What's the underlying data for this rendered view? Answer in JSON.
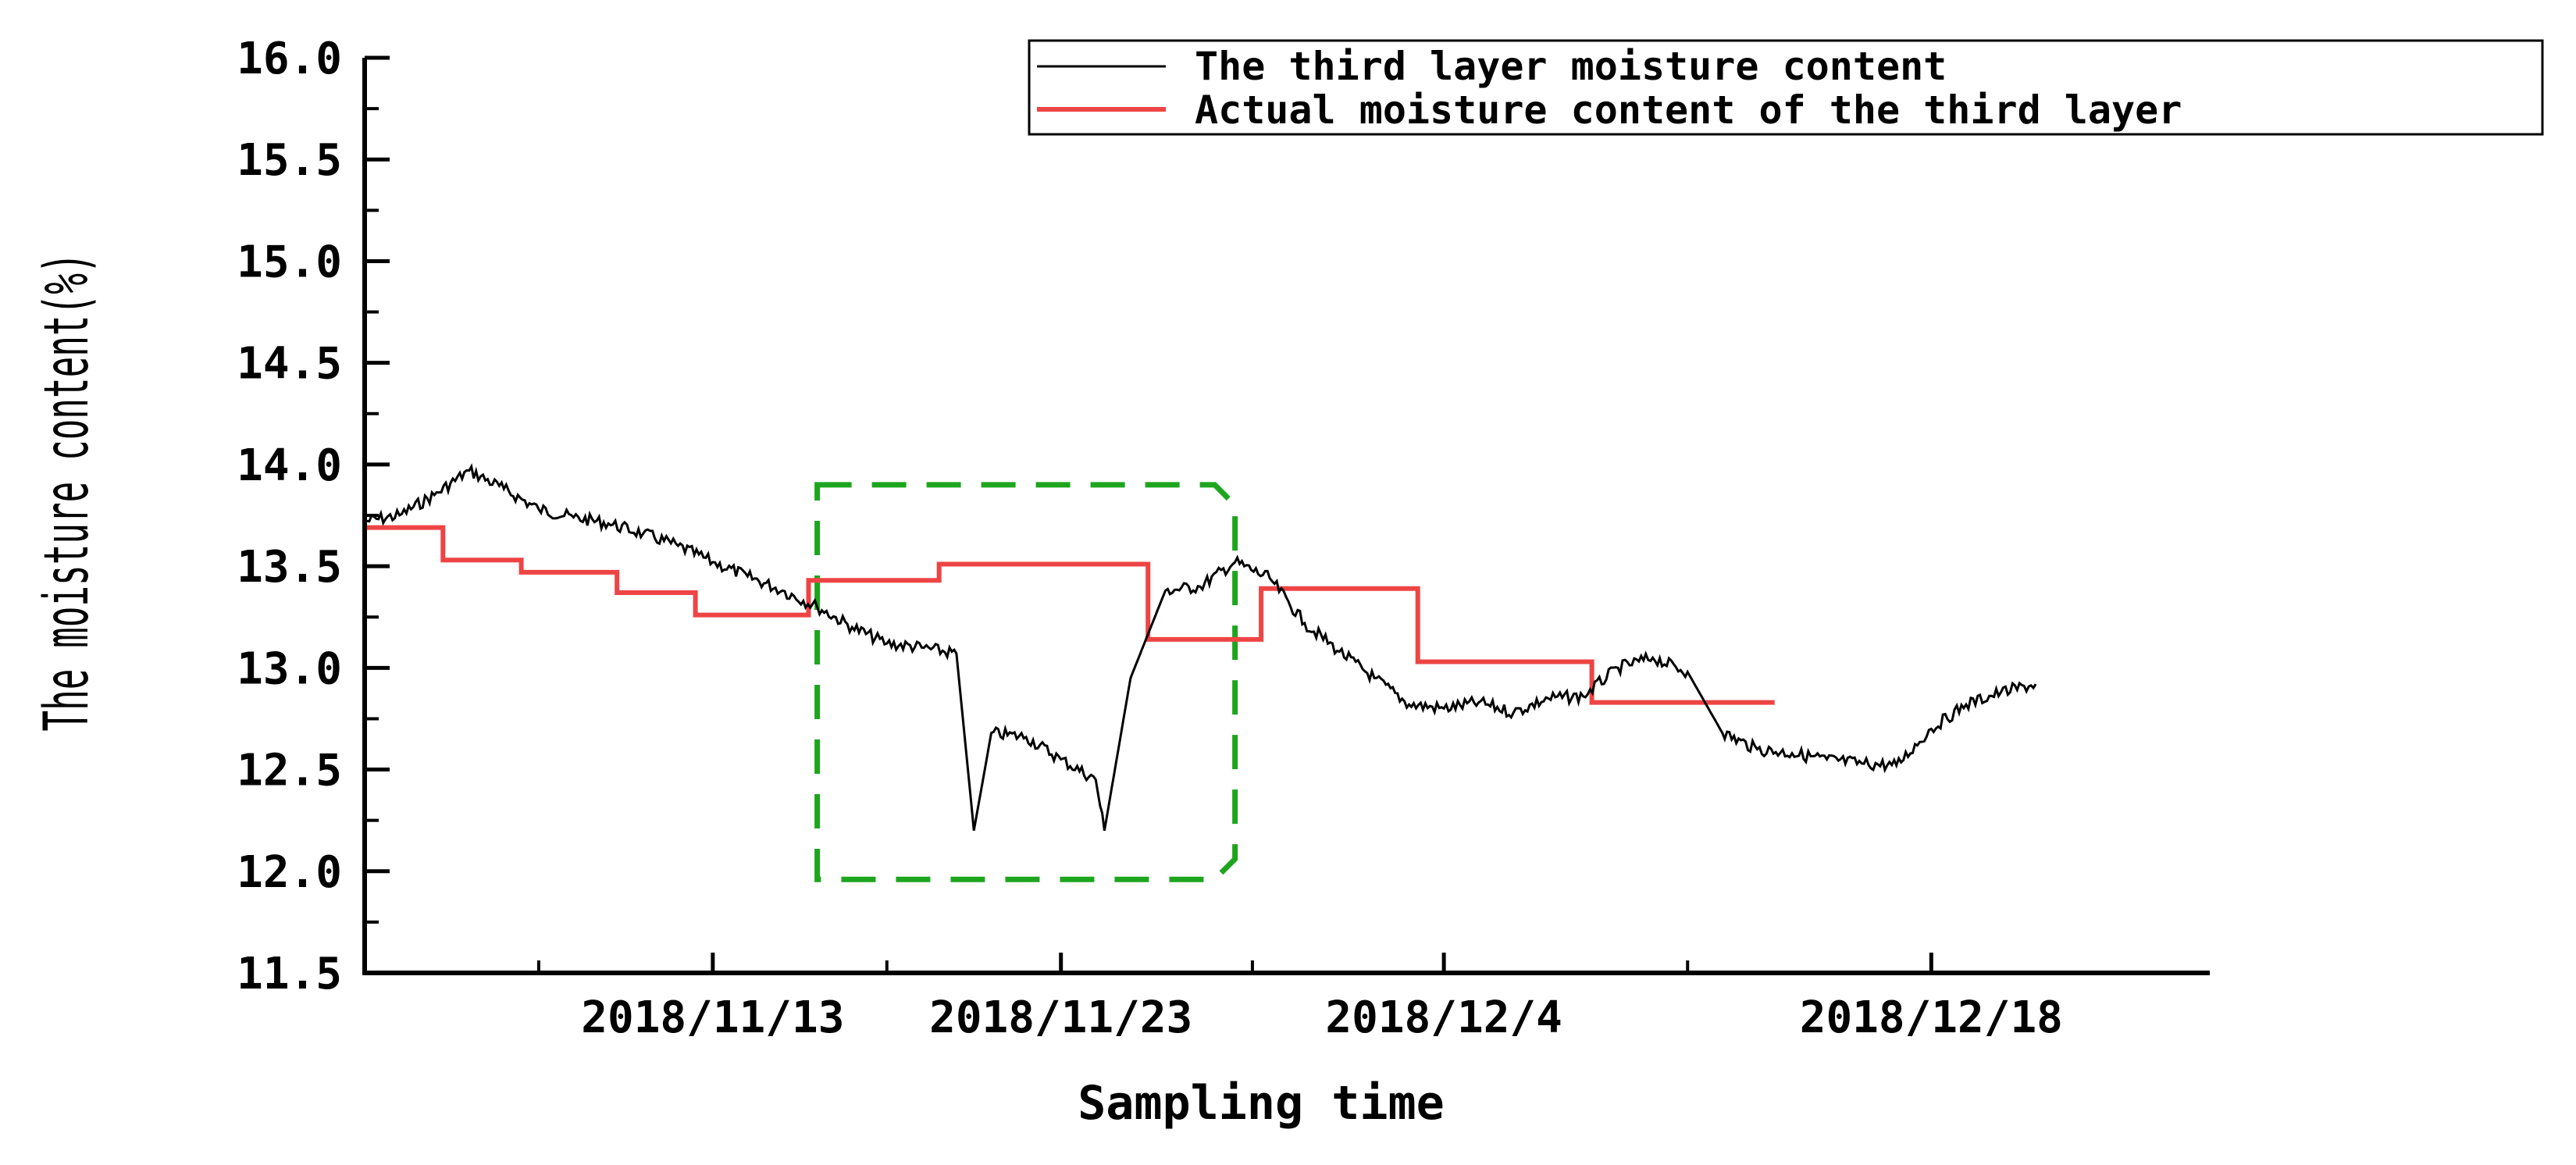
{
  "chart_data": {
    "type": "line",
    "xlabel": "Sampling time",
    "ylabel": "The moisture content(%)",
    "ylim": [
      11.5,
      16.0
    ],
    "y_ticks": [
      "16.0",
      "15.5",
      "15.0",
      "14.5",
      "14.0",
      "13.5",
      "13.0",
      "12.5",
      "12.0",
      "11.5"
    ],
    "x_ticks": [
      "2018/11/13",
      "2018/11/23",
      "2018/12/4",
      "2018/12/18"
    ],
    "x_axis_range": [
      "2018/11/3",
      "2018/12/26"
    ],
    "legend": {
      "position": "top-right",
      "entries": [
        "The third layer moisture content",
        "Actual moisture content of the third layer"
      ]
    },
    "highlight_region": {
      "x": [
        "2018/11/16",
        "2018/11/28"
      ],
      "y": [
        11.96,
        13.9
      ],
      "style": "dashed",
      "color": "#1ea51e"
    },
    "series": [
      {
        "name": "The third layer moisture content",
        "color": "#000000",
        "x": [
          "2018/11/3",
          "2018/11/4",
          "2018/11/5",
          "2018/11/6",
          "2018/11/7",
          "2018/11/8",
          "2018/11/9",
          "2018/11/10",
          "2018/11/11",
          "2018/11/12",
          "2018/11/13",
          "2018/11/14",
          "2018/11/15",
          "2018/11/16",
          "2018/11/17",
          "2018/11/18",
          "2018/11/19",
          "2018/11/20",
          "2018/11/20 12:00",
          "2018/11/21",
          "2018/11/22",
          "2018/11/23",
          "2018/11/24",
          "2018/11/24 6:00",
          "2018/11/25",
          "2018/11/26",
          "2018/11/27",
          "2018/11/28",
          "2018/11/29",
          "2018/11/30",
          "2018/12/1",
          "2018/12/2",
          "2018/12/3",
          "2018/12/4",
          "2018/12/5",
          "2018/12/6",
          "2018/12/7",
          "2018/12/8",
          "2018/12/9",
          "2018/12/10",
          "2018/12/11",
          "2018/12/12",
          "2018/12/13",
          "2018/12/14",
          "2018/12/15",
          "2018/12/16",
          "2018/12/17",
          "2018/12/18",
          "2018/12/19",
          "2018/12/20",
          "2018/12/21"
        ],
        "y": [
          13.72,
          13.75,
          13.85,
          13.97,
          13.88,
          13.78,
          13.74,
          13.71,
          13.66,
          13.6,
          13.52,
          13.45,
          13.38,
          13.3,
          13.2,
          13.12,
          13.1,
          13.07,
          12.2,
          12.68,
          12.66,
          12.55,
          12.45,
          12.2,
          12.95,
          13.38,
          13.4,
          13.52,
          13.44,
          13.22,
          13.08,
          12.95,
          12.82,
          12.8,
          12.83,
          12.78,
          12.85,
          12.86,
          13.0,
          13.05,
          12.98,
          12.68,
          12.6,
          12.58,
          12.55,
          12.53,
          12.52,
          12.7,
          12.82,
          12.88,
          12.92
        ]
      },
      {
        "name": "Actual moisture content of the third layer",
        "color": "#ee4444",
        "steps": [
          {
            "from": "2018/11/3",
            "to": "2018/11/5 6:00",
            "value": 13.69
          },
          {
            "from": "2018/11/5 6:00",
            "to": "2018/11/7 12:00",
            "value": 13.53
          },
          {
            "from": "2018/11/7 12:00",
            "to": "2018/11/10 6:00",
            "value": 13.47
          },
          {
            "from": "2018/11/10 6:00",
            "to": "2018/11/12 12:00",
            "value": 13.37
          },
          {
            "from": "2018/11/12 12:00",
            "to": "2018/11/15 18:00",
            "value": 13.26
          },
          {
            "from": "2018/11/15 18:00",
            "to": "2018/11/19 12:00",
            "value": 13.43
          },
          {
            "from": "2018/11/19 12:00",
            "to": "2018/11/25 12:00",
            "value": 13.51
          },
          {
            "from": "2018/11/25 12:00",
            "to": "2018/11/28 18:00",
            "value": 13.14
          },
          {
            "from": "2018/11/28 18:00",
            "to": "2018/12/3 6:00",
            "value": 13.39
          },
          {
            "from": "2018/12/3 6:00",
            "to": "2018/12/8 6:00",
            "value": 13.03
          },
          {
            "from": "2018/12/8 6:00",
            "to": "2018/12/13 12:00",
            "value": 12.83
          }
        ]
      }
    ]
  }
}
